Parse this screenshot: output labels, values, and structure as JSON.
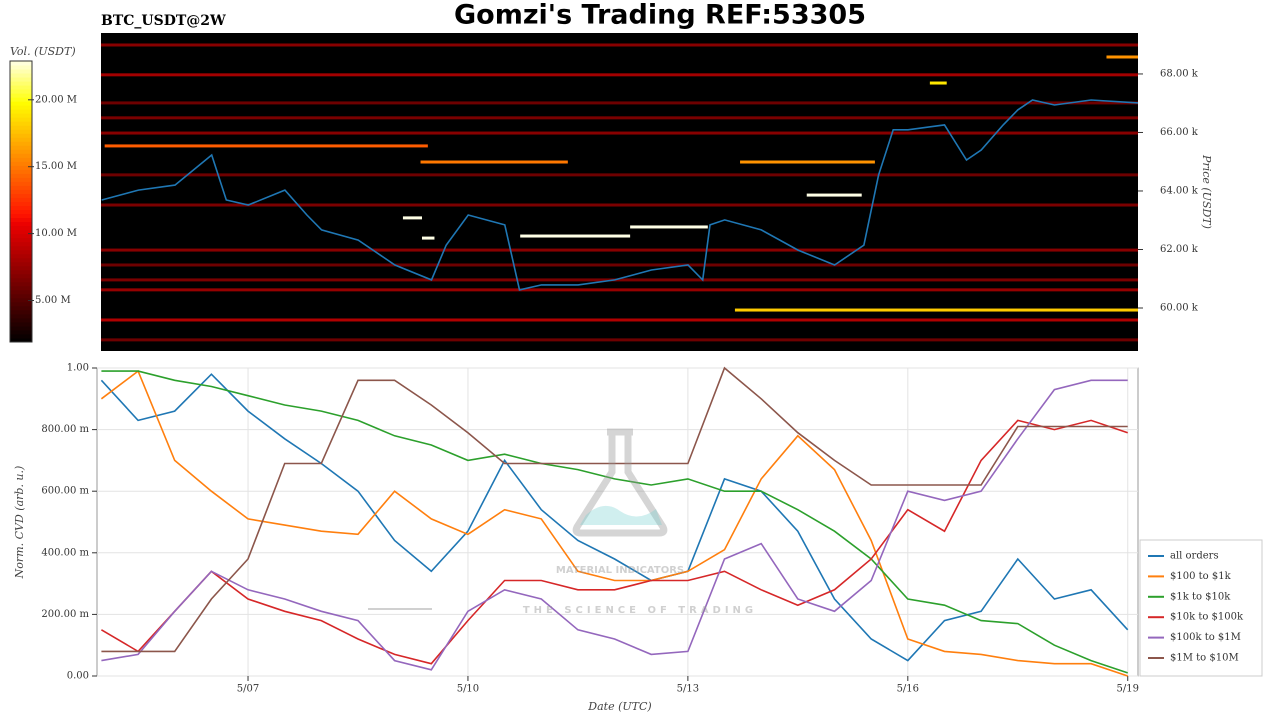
{
  "title": "Gomzi's Trading REF:53305",
  "watermark": {
    "title": "MATERIAL INDICATORS",
    "subtitle": "THE SCIENCE OF TRADING"
  },
  "chart_data": [
    {
      "type": "heatmap",
      "title": "BTC_USDT@2W",
      "ylabel": "Price (USDT)",
      "xlim": [
        4.99,
        19.14
      ],
      "ylim": [
        58530,
        69400
      ],
      "yticks": [
        {
          "value": 60000,
          "label": "60.00 k"
        },
        {
          "value": 62000,
          "label": "62.00 k"
        },
        {
          "value": 64000,
          "label": "64.00 k"
        },
        {
          "value": 66000,
          "label": "66.00 k"
        },
        {
          "value": 68000,
          "label": "68.00 k"
        }
      ],
      "colorbar": {
        "label": "Vol. (USDT)",
        "lim": [
          1900000,
          22900000
        ],
        "ticks": [
          {
            "value": 5000000,
            "label": "5.00 M"
          },
          {
            "value": 10000000,
            "label": "10.00 M"
          },
          {
            "value": 15000000,
            "label": "15.00 M"
          },
          {
            "value": 20000000,
            "label": "20.00 M"
          }
        ]
      },
      "walls": {
        "price": [
          68990,
          67970,
          67010,
          66500,
          65980,
          64550,
          63520,
          61980,
          61470,
          60960,
          60620,
          59590,
          58910,
          63080,
          62390,
          62460,
          62770,
          63860,
          67690,
          68580,
          65540,
          64990,
          64990,
          59930
        ],
        "x_start": [
          4.99,
          4.99,
          4.99,
          4.99,
          4.99,
          4.99,
          4.99,
          4.99,
          4.99,
          4.99,
          4.99,
          4.99,
          4.99,
          9.11,
          9.37,
          10.71,
          12.21,
          14.62,
          16.3,
          18.71,
          5.04,
          9.35,
          13.71,
          13.64
        ],
        "x_end": [
          19.14,
          19.14,
          19.14,
          19.14,
          19.14,
          19.14,
          19.14,
          19.14,
          19.14,
          19.14,
          19.14,
          19.14,
          19.14,
          9.37,
          9.54,
          12.21,
          13.27,
          15.37,
          16.53,
          19.14,
          9.45,
          11.36,
          15.55,
          19.14
        ],
        "volume": [
          7000000,
          8000000,
          6000000,
          6500000,
          7000000,
          6000000,
          6500000,
          7000000,
          6000000,
          6500000,
          7500000,
          8500000,
          6000000,
          23000000,
          23000000,
          23000000,
          23000000,
          23000000,
          19000000,
          16000000,
          14000000,
          15000000,
          16000000,
          18000000
        ]
      },
      "line": {
        "color": "#1f77b4",
        "x": [
          5.0,
          5.5,
          6.0,
          6.5,
          6.7,
          7.0,
          7.5,
          7.8,
          8.0,
          8.5,
          9.0,
          9.5,
          9.7,
          10.0,
          10.5,
          10.7,
          11.0,
          11.5,
          12.0,
          12.5,
          13.0,
          13.2,
          13.3,
          13.5,
          14.0,
          14.5,
          15.0,
          15.4,
          15.6,
          15.8,
          16.0,
          16.5,
          16.8,
          17.0,
          17.3,
          17.5,
          17.7,
          18.0,
          18.5,
          19.14
        ],
        "values": [
          63690,
          64030,
          64200,
          65230,
          63690,
          63520,
          64030,
          63180,
          62670,
          62320,
          61470,
          60960,
          62150,
          63180,
          62840,
          60620,
          60790,
          60790,
          60960,
          61300,
          61470,
          60960,
          62840,
          63010,
          62670,
          61980,
          61470,
          62150,
          64550,
          66090,
          66090,
          66260,
          65060,
          65400,
          66260,
          66770,
          67110,
          66940,
          67110,
          67010
        ]
      }
    },
    {
      "type": "line",
      "xlabel": "Date (UTC)",
      "ylabel": "Norm. CVD (arb. u.)",
      "xlim": [
        4.94,
        19.14
      ],
      "ylim": [
        0,
        1
      ],
      "xticks": [
        {
          "value": 7,
          "label": "5/07"
        },
        {
          "value": 10,
          "label": "5/10"
        },
        {
          "value": 13,
          "label": "5/13"
        },
        {
          "value": 16,
          "label": "5/16"
        },
        {
          "value": 19,
          "label": "5/19"
        }
      ],
      "yticks": [
        {
          "value": 0,
          "label": "0.00"
        },
        {
          "value": 0.2,
          "label": "200.00 m"
        },
        {
          "value": 0.4,
          "label": "400.00 m"
        },
        {
          "value": 0.6,
          "label": "600.00 m"
        },
        {
          "value": 0.8,
          "label": "800.00 m"
        },
        {
          "value": 1,
          "label": "1.00"
        }
      ],
      "grid": true,
      "legend": "lower right",
      "x": [
        5.0,
        5.5,
        6.0,
        6.5,
        7.0,
        7.5,
        8.0,
        8.5,
        9.0,
        9.5,
        10.0,
        10.5,
        11.0,
        11.5,
        12.0,
        12.5,
        13.0,
        13.5,
        14.0,
        14.5,
        15.0,
        15.5,
        16.0,
        16.5,
        17.0,
        17.5,
        18.0,
        18.5,
        19.0
      ],
      "series": [
        {
          "name": "all orders",
          "color": "#1f77b4",
          "values": [
            0.96,
            0.83,
            0.86,
            0.98,
            0.86,
            0.77,
            0.69,
            0.6,
            0.44,
            0.34,
            0.47,
            0.7,
            0.54,
            0.44,
            0.38,
            0.31,
            0.34,
            0.64,
            0.6,
            0.47,
            0.25,
            0.12,
            0.05,
            0.18,
            0.21,
            0.38,
            0.25,
            0.28,
            0.15
          ]
        },
        {
          "name": "$100 to $1k",
          "color": "#ff7f0e",
          "values": [
            0.9,
            0.99,
            0.7,
            0.6,
            0.51,
            0.49,
            0.47,
            0.46,
            0.6,
            0.51,
            0.46,
            0.54,
            0.51,
            0.34,
            0.31,
            0.31,
            0.34,
            0.41,
            0.64,
            0.78,
            0.67,
            0.44,
            0.12,
            0.08,
            0.07,
            0.05,
            0.04,
            0.04,
            0.0
          ]
        },
        {
          "name": "$1k to $10k",
          "color": "#2ca02c",
          "values": [
            0.99,
            0.99,
            0.96,
            0.94,
            0.91,
            0.88,
            0.86,
            0.83,
            0.78,
            0.75,
            0.7,
            0.72,
            0.69,
            0.67,
            0.64,
            0.62,
            0.64,
            0.6,
            0.6,
            0.54,
            0.47,
            0.38,
            0.25,
            0.23,
            0.18,
            0.17,
            0.1,
            0.05,
            0.01
          ]
        },
        {
          "name": "$10k to $100k",
          "color": "#d62728",
          "values": [
            0.15,
            0.08,
            0.21,
            0.34,
            0.25,
            0.21,
            0.18,
            0.12,
            0.07,
            0.04,
            0.18,
            0.31,
            0.31,
            0.28,
            0.28,
            0.31,
            0.31,
            0.34,
            0.28,
            0.23,
            0.28,
            0.38,
            0.54,
            0.47,
            0.7,
            0.83,
            0.8,
            0.83,
            0.79
          ]
        },
        {
          "name": "$100k to $1M",
          "color": "#9467bd",
          "values": [
            0.05,
            0.07,
            0.21,
            0.34,
            0.28,
            0.25,
            0.21,
            0.18,
            0.05,
            0.02,
            0.21,
            0.28,
            0.25,
            0.15,
            0.12,
            0.07,
            0.08,
            0.38,
            0.43,
            0.25,
            0.21,
            0.31,
            0.6,
            0.57,
            0.6,
            0.77,
            0.93,
            0.96,
            0.96
          ]
        },
        {
          "name": "$1M to $10M",
          "color": "#8c564b",
          "values": [
            0.08,
            0.08,
            0.08,
            0.25,
            0.38,
            0.69,
            0.69,
            0.96,
            0.96,
            0.88,
            0.79,
            0.69,
            0.69,
            0.69,
            0.69,
            0.69,
            0.69,
            1.0,
            0.9,
            0.79,
            0.7,
            0.62,
            0.62,
            0.62,
            0.62,
            0.81,
            0.81,
            0.81,
            0.81
          ]
        }
      ]
    }
  ]
}
